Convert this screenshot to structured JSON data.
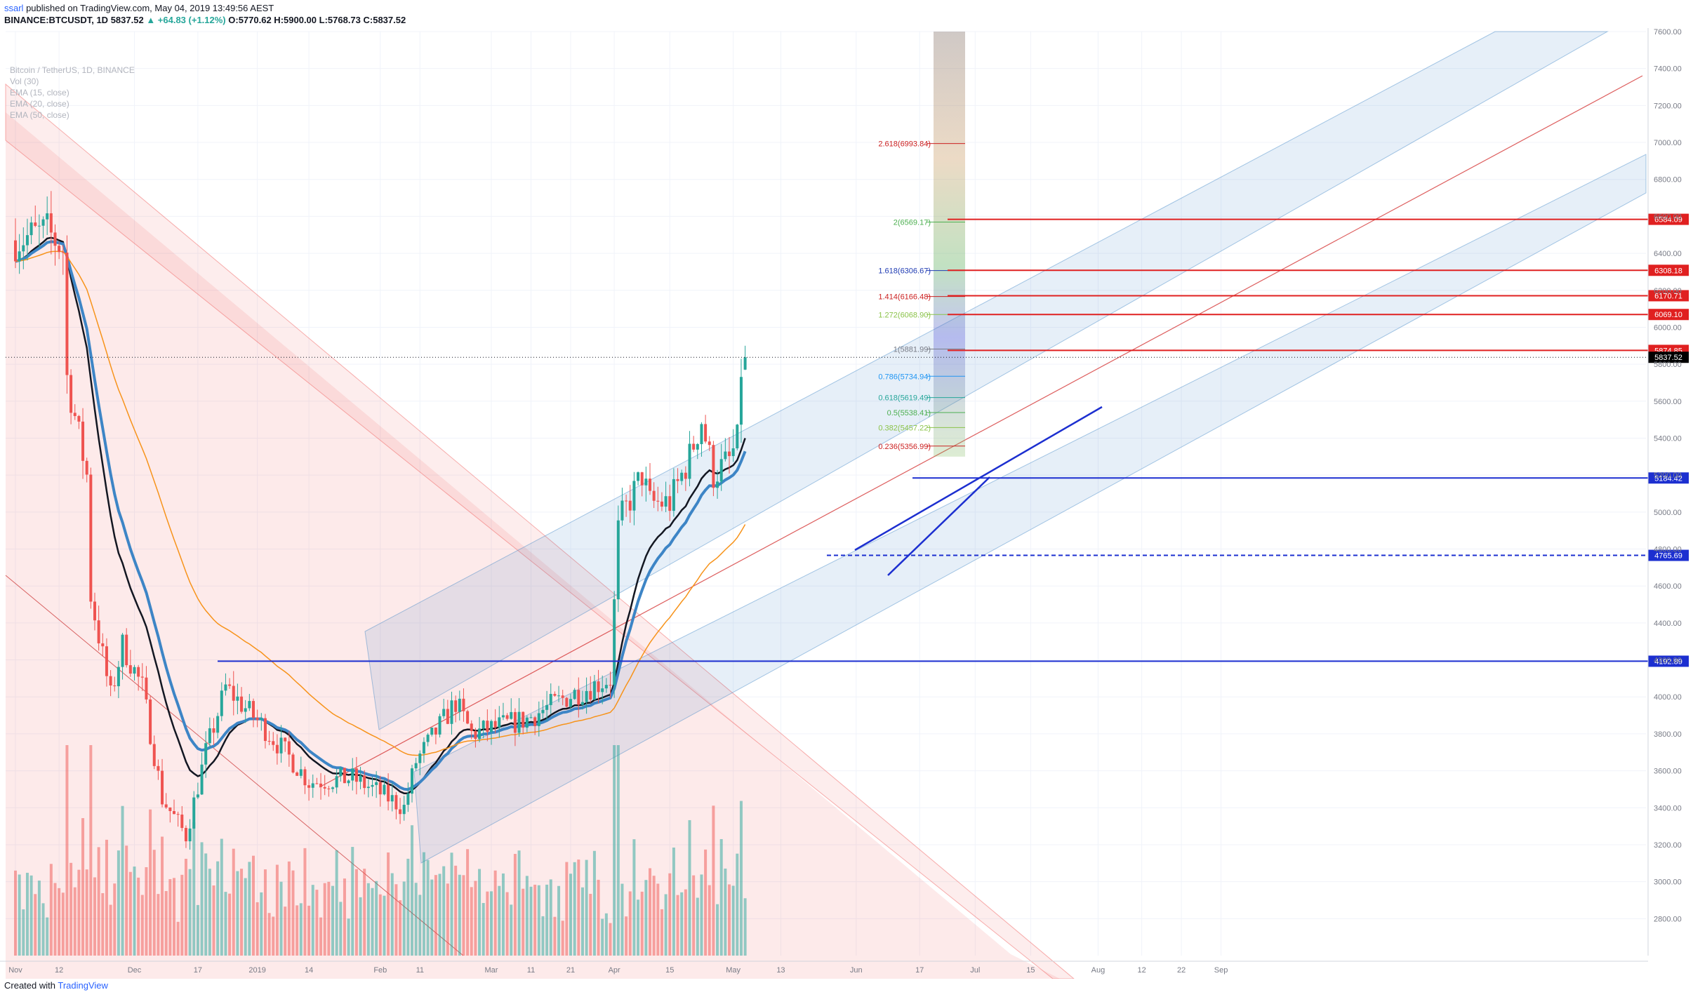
{
  "header": {
    "user": "ssarl",
    "published_text": "published on TradingView.com, May 04, 2019 13:49:56 AEST",
    "symbol_line_prefix": "BINANCE:BTCUSDT, 1D",
    "last": "5837.52",
    "change": "▲ +64.83 (+1.12%)",
    "ohlc": "O:5770.62 H:5900.00 L:5768.73 C:5837.52"
  },
  "legend": {
    "title": "Bitcoin / TetherUS, 1D, BINANCE",
    "lines": [
      "Vol (30)",
      "EMA (15, close)",
      "EMA (20, close)",
      "EMA (50, close)"
    ]
  },
  "footer": {
    "created_with": "Created with",
    "brand": "TradingView"
  },
  "colors": {
    "bull": "#26a69a",
    "bear": "#ef5350",
    "ema15": "#131722",
    "ema20": "#3d85c6",
    "ema50": "#f7931a",
    "support": "#1c2fd0",
    "resistance": "#e02020",
    "price_tag": "#000000"
  },
  "chart_data": {
    "type": "candlestick",
    "symbol": "BTCUSDT",
    "interval": "1D",
    "ylim": [
      2600,
      7600
    ],
    "y_ticks": [
      "2800.00",
      "3000.00",
      "3200.00",
      "3400.00",
      "3600.00",
      "3800.00",
      "4000.00",
      "4200.00",
      "4400.00",
      "4600.00",
      "4800.00",
      "5000.00",
      "5200.00",
      "5400.00",
      "5600.00",
      "5800.00",
      "6000.00",
      "6200.00",
      "6400.00",
      "6600.00",
      "6800.00",
      "7000.00",
      "7200.00",
      "7400.00",
      "7600.00"
    ],
    "x_ticks": [
      {
        "label": "Nov",
        "date": "2018-11-01"
      },
      {
        "label": "12",
        "date": "2018-11-12"
      },
      {
        "label": "Dec",
        "date": "2018-12-01"
      },
      {
        "label": "17",
        "date": "2018-12-17"
      },
      {
        "label": "2019",
        "date": "2019-01-01"
      },
      {
        "label": "14",
        "date": "2019-01-14"
      },
      {
        "label": "Feb",
        "date": "2019-02-01"
      },
      {
        "label": "11",
        "date": "2019-02-11"
      },
      {
        "label": "Mar",
        "date": "2019-03-01"
      },
      {
        "label": "11",
        "date": "2019-03-11"
      },
      {
        "label": "21",
        "date": "2019-03-21"
      },
      {
        "label": "Apr",
        "date": "2019-04-01"
      },
      {
        "label": "15",
        "date": "2019-04-15"
      },
      {
        "label": "May",
        "date": "2019-05-01"
      },
      {
        "label": "13",
        "date": "2019-05-13"
      },
      {
        "label": "Jun",
        "date": "2019-06-01"
      },
      {
        "label": "17",
        "date": "2019-06-17"
      },
      {
        "label": "Jul",
        "date": "2019-07-01"
      },
      {
        "label": "15",
        "date": "2019-07-15"
      },
      {
        "label": "Aug",
        "date": "2019-08-01"
      },
      {
        "label": "12",
        "date": "2019-08-12"
      },
      {
        "label": "22",
        "date": "2019-08-22"
      },
      {
        "label": "Sep",
        "date": "2019-09-01"
      }
    ],
    "candle_anchors": [
      {
        "date": "2018-11-01",
        "close": 6470
      },
      {
        "date": "2018-11-09",
        "close": 6520
      },
      {
        "date": "2018-11-13",
        "close": 6420
      },
      {
        "date": "2018-11-14",
        "close": 5730
      },
      {
        "date": "2018-11-19",
        "close": 5200
      },
      {
        "date": "2018-11-20",
        "close": 4550
      },
      {
        "date": "2018-11-25",
        "close": 4000
      },
      {
        "date": "2018-11-28",
        "close": 4280
      },
      {
        "date": "2018-12-03",
        "close": 4050
      },
      {
        "date": "2018-12-08",
        "close": 3450
      },
      {
        "date": "2018-12-14",
        "close": 3250
      },
      {
        "date": "2018-12-19",
        "close": 3700
      },
      {
        "date": "2018-12-24",
        "close": 4050
      },
      {
        "date": "2019-01-02",
        "close": 3850
      },
      {
        "date": "2019-01-10",
        "close": 3650
      },
      {
        "date": "2019-01-14",
        "close": 3540
      },
      {
        "date": "2019-01-25",
        "close": 3560
      },
      {
        "date": "2019-02-01",
        "close": 3480
      },
      {
        "date": "2019-02-07",
        "close": 3400
      },
      {
        "date": "2019-02-10",
        "close": 3650
      },
      {
        "date": "2019-02-20",
        "close": 3970
      },
      {
        "date": "2019-02-24",
        "close": 3800
      },
      {
        "date": "2019-03-10",
        "close": 3880
      },
      {
        "date": "2019-03-20",
        "close": 4000
      },
      {
        "date": "2019-03-31",
        "close": 4100
      },
      {
        "date": "2019-04-02",
        "close": 4900
      },
      {
        "date": "2019-04-03",
        "close": 4980
      },
      {
        "date": "2019-04-08",
        "close": 5200
      },
      {
        "date": "2019-04-10",
        "close": 5050
      },
      {
        "date": "2019-04-15",
        "close": 5050
      },
      {
        "date": "2019-04-20",
        "close": 5300
      },
      {
        "date": "2019-04-23",
        "close": 5500
      },
      {
        "date": "2019-04-26",
        "close": 5200
      },
      {
        "date": "2019-04-30",
        "close": 5280
      },
      {
        "date": "2019-05-02",
        "close": 5380
      },
      {
        "date": "2019-05-03",
        "close": 5770
      },
      {
        "date": "2019-05-04",
        "close": 5837.52
      }
    ],
    "last_candle": {
      "date": "2019-05-04",
      "open": 5770.62,
      "high": 5900.0,
      "low": 5768.73,
      "close": 5837.52
    },
    "horizontal_levels": [
      {
        "price": 6584.09,
        "label": "6584.09",
        "style": "solid",
        "color": "resistance"
      },
      {
        "price": 6308.18,
        "label": "6308.18",
        "style": "solid",
        "color": "resistance"
      },
      {
        "price": 6170.71,
        "label": "6170.71",
        "style": "solid",
        "color": "resistance"
      },
      {
        "price": 6069.1,
        "label": "6069.10",
        "style": "solid",
        "color": "resistance"
      },
      {
        "price": 5874.85,
        "label": "5874.85",
        "style": "solid",
        "color": "resistance"
      },
      {
        "price": 5184.42,
        "label": "5184.42",
        "style": "solid",
        "color": "support"
      },
      {
        "price": 4765.69,
        "label": "4765.69",
        "style": "dashed",
        "color": "support"
      },
      {
        "price": 4192.89,
        "label": "4192.89",
        "style": "solid",
        "color": "support"
      }
    ],
    "last_price_label": "5837.52",
    "fib_levels": [
      {
        "ratio": "2.618",
        "price": 6993.84,
        "label": "2.618(6993.84)",
        "color": "#cc2222"
      },
      {
        "ratio": "2",
        "price": 6569.17,
        "label": "2(6569.17)",
        "color": "#4caf50"
      },
      {
        "ratio": "1.618",
        "price": 6306.67,
        "label": "1.618(6306.67)",
        "color": "#1f3bb3"
      },
      {
        "ratio": "1.414",
        "price": 6166.48,
        "label": "1.414(6166.48)",
        "color": "#cc2222"
      },
      {
        "ratio": "1.272",
        "price": 6068.9,
        "label": "1.272(6068.90)",
        "color": "#8bc34a"
      },
      {
        "ratio": "1",
        "price": 5881.99,
        "label": "1(5881.99)",
        "color": "#787b86"
      },
      {
        "ratio": "0.786",
        "price": 5734.94,
        "label": "0.786(5734.94)",
        "color": "#2196f3"
      },
      {
        "ratio": "0.618",
        "price": 5619.49,
        "label": "0.618(5619.49)",
        "color": "#26a69a"
      },
      {
        "ratio": "0.5",
        "price": 5538.41,
        "label": "0.5(5538.41)",
        "color": "#4caf50"
      },
      {
        "ratio": "0.382",
        "price": 5457.22,
        "label": "0.382(5457.22)",
        "color": "#8bc34a"
      },
      {
        "ratio": "0.236",
        "price": 5356.99,
        "label": "0.236(5356.99)",
        "color": "#cc2222"
      }
    ]
  }
}
